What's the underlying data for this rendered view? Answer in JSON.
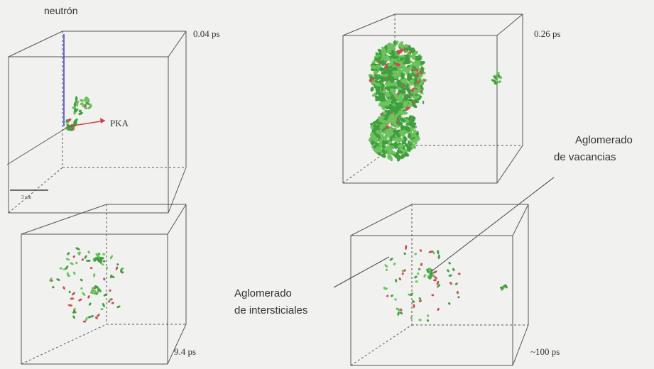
{
  "header": {
    "neutron_label": "neutrón",
    "pka_label": "PKA",
    "scale_label": "3 nm"
  },
  "panels": [
    {
      "time": "0.04 ps"
    },
    {
      "time": "0.26 ps"
    },
    {
      "time": "9.4 ps"
    },
    {
      "time": "~100 ps"
    }
  ],
  "annotations": [
    {
      "lines": [
        "Aglomerado",
        "de vacancias"
      ]
    },
    {
      "lines": [
        "Aglomerado",
        "de intersticiales"
      ]
    }
  ]
}
